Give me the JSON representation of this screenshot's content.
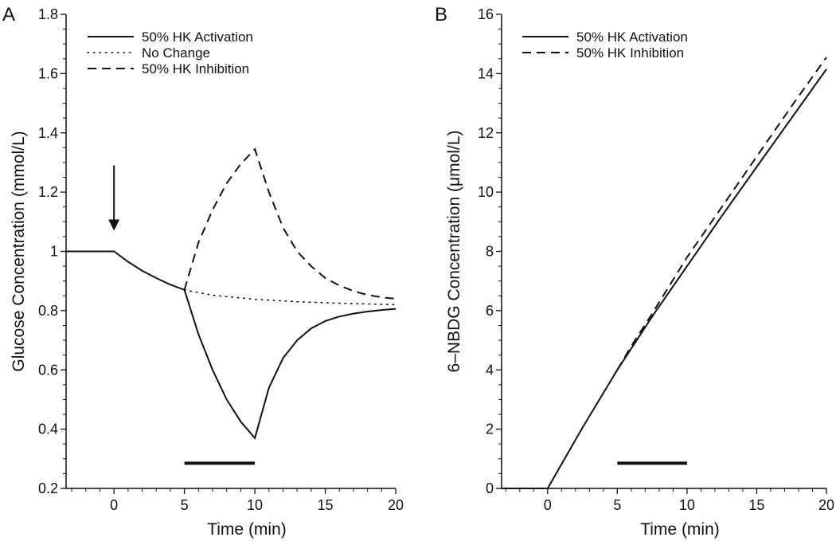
{
  "chart_data": [
    {
      "type": "line",
      "panel_label": "A",
      "xlabel": "Time (min)",
      "ylabel": "Glucose Concentration (mmol/L)",
      "xlim": [
        -3.4,
        20
      ],
      "ylim": [
        0.2,
        1.8
      ],
      "xticks": [
        0,
        5,
        10,
        15,
        20
      ],
      "xtick_labels": [
        "0",
        "5",
        "10",
        "15",
        "20"
      ],
      "yticks": [
        0.2,
        0.4,
        0.6,
        0.8,
        1,
        1.2,
        1.4,
        1.6,
        1.8
      ],
      "ytick_labels": [
        "0.2",
        "0.4",
        "0.6",
        "0.8",
        "1",
        "1.2",
        "1.4",
        "1.6",
        "1.8"
      ],
      "legend_position": "top-left",
      "series": [
        {
          "name": "50% HK Activation",
          "style": "solid",
          "x": [
            -3.4,
            0,
            1,
            2,
            3,
            4,
            5,
            6,
            7,
            8,
            9,
            10,
            11,
            12,
            13,
            14,
            15,
            16,
            17,
            18,
            19,
            20
          ],
          "y": [
            1,
            1,
            0.965,
            0.935,
            0.91,
            0.888,
            0.87,
            0.72,
            0.6,
            0.5,
            0.425,
            0.37,
            0.54,
            0.64,
            0.7,
            0.74,
            0.765,
            0.78,
            0.79,
            0.797,
            0.802,
            0.806
          ]
        },
        {
          "name": "No Change",
          "style": "dotted",
          "x": [
            5,
            7,
            10,
            13,
            16,
            20
          ],
          "y": [
            0.87,
            0.852,
            0.838,
            0.83,
            0.825,
            0.82
          ]
        },
        {
          "name": "50% HK Inhibition",
          "style": "dashed",
          "x": [
            5,
            6,
            7,
            8,
            9,
            10,
            11,
            12,
            13,
            14,
            15,
            16,
            17,
            18,
            19,
            20
          ],
          "y": [
            0.87,
            1.03,
            1.14,
            1.23,
            1.295,
            1.345,
            1.2,
            1.08,
            1.0,
            0.95,
            0.91,
            0.885,
            0.866,
            0.853,
            0.845,
            0.84
          ]
        }
      ],
      "annotations": {
        "arrow": {
          "x": 0,
          "y_from": 1.29,
          "y_to": 1.07
        },
        "treatment_bar": {
          "x_from": 5,
          "x_to": 10,
          "y": 0.285
        }
      }
    },
    {
      "type": "line",
      "panel_label": "B",
      "xlabel": "Time (min)",
      "ylabel": "6–NBDG Concentration (μmol/L)",
      "xlim": [
        -3.3,
        20
      ],
      "ylim": [
        0,
        16
      ],
      "xticks": [
        0,
        5,
        10,
        15,
        20
      ],
      "xtick_labels": [
        "0",
        "5",
        "10",
        "15",
        "20"
      ],
      "yticks": [
        0,
        2,
        4,
        6,
        8,
        10,
        12,
        14,
        16
      ],
      "ytick_labels": [
        "0",
        "2",
        "4",
        "6",
        "8",
        "10",
        "12",
        "14",
        "16"
      ],
      "legend_position": "top-left",
      "series": [
        {
          "name": "50% HK Activation",
          "style": "solid",
          "x": [
            -3.3,
            0,
            2.5,
            5,
            7.5,
            10,
            12.5,
            15,
            17.5,
            20
          ],
          "y": [
            0,
            0,
            2.05,
            4.0,
            5.8,
            7.5,
            9.2,
            10.85,
            12.5,
            14.15
          ]
        },
        {
          "name": "50% HK Inhibition",
          "style": "dashed",
          "x": [
            5,
            6,
            7.5,
            10,
            12.5,
            15,
            17.5,
            20
          ],
          "y": [
            4.0,
            4.8,
            5.9,
            7.8,
            9.5,
            11.2,
            12.9,
            14.55
          ]
        }
      ],
      "annotations": {
        "treatment_bar": {
          "x_from": 5,
          "x_to": 10,
          "y": 0.85
        }
      }
    }
  ]
}
